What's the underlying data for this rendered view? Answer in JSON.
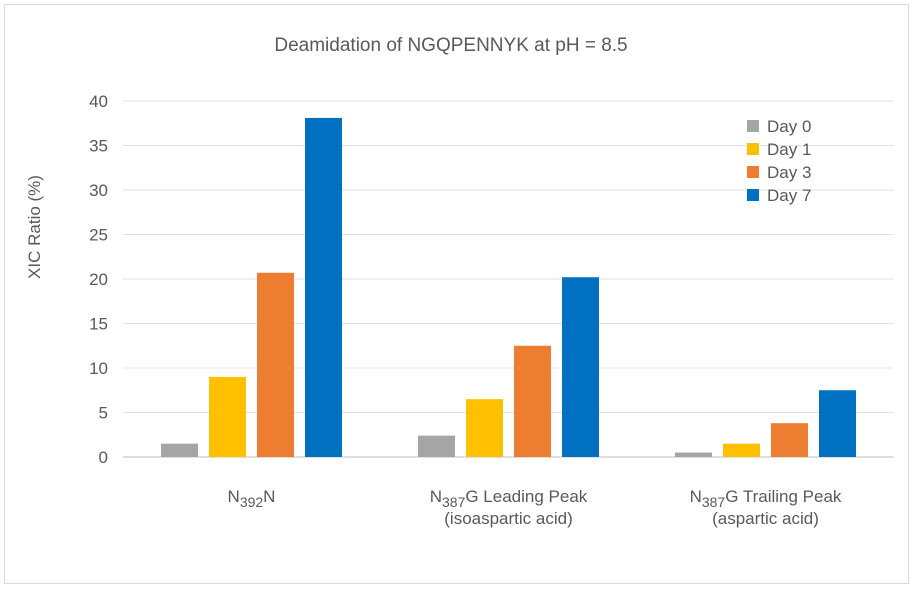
{
  "chart_data": {
    "type": "bar",
    "title": "Deamidation of NGQPENNYK at pH = 8.5",
    "ylabel": "XIC Ratio (%)",
    "xlabel": "",
    "ylim": [
      0,
      40
    ],
    "yticks": [
      0,
      5,
      10,
      15,
      20,
      25,
      30,
      35,
      40
    ],
    "grid": true,
    "legend_position": "top-right",
    "categories": [
      {
        "label": "N392N",
        "lines": [
          [
            {
              "t": "N"
            },
            {
              "t": "392",
              "sub": true
            },
            {
              "t": "N"
            }
          ]
        ]
      },
      {
        "label": "N387G Leading Peak (isoaspartic acid)",
        "lines": [
          [
            {
              "t": "N"
            },
            {
              "t": "387",
              "sub": true
            },
            {
              "t": "G Leading Peak"
            }
          ],
          [
            {
              "t": "(isoaspartic acid)"
            }
          ]
        ]
      },
      {
        "label": "N387G Trailing Peak (aspartic acid)",
        "lines": [
          [
            {
              "t": "N"
            },
            {
              "t": "387",
              "sub": true
            },
            {
              "t": "G Trailing Peak"
            }
          ],
          [
            {
              "t": "(aspartic acid)"
            }
          ]
        ]
      }
    ],
    "series": [
      {
        "name": "Day 0",
        "color": "#a5a5a5",
        "values": [
          1.5,
          2.4,
          0.5
        ]
      },
      {
        "name": "Day 1",
        "color": "#ffc000",
        "values": [
          9.0,
          6.5,
          1.5
        ]
      },
      {
        "name": "Day 3",
        "color": "#ed7d31",
        "values": [
          20.7,
          12.5,
          3.8
        ]
      },
      {
        "name": "Day 7",
        "color": "#0070c0",
        "values": [
          38.1,
          20.2,
          7.5
        ]
      }
    ]
  }
}
